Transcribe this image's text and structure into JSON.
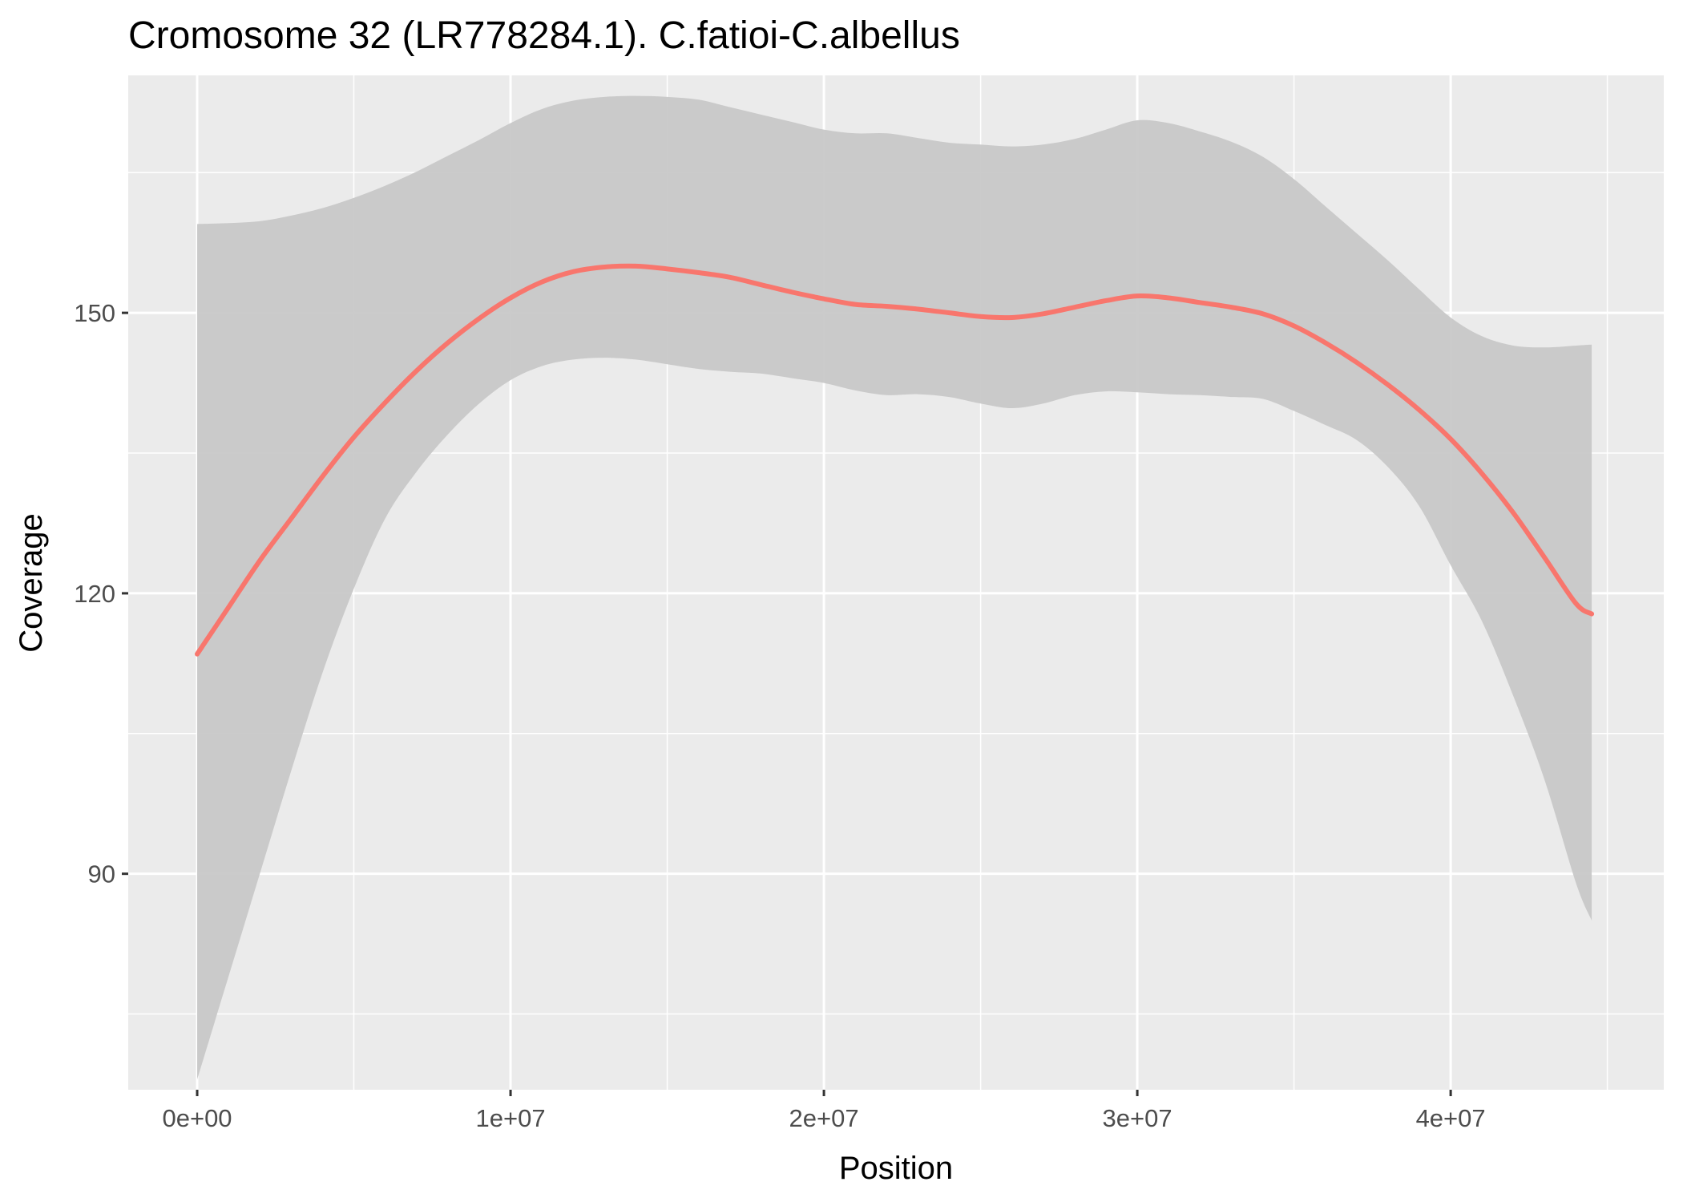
{
  "chart_data": {
    "type": "line",
    "title": "Cromosome 32 (LR778284.1). C.fatioi-C.albellus",
    "xlabel": "Position",
    "ylabel": "Coverage",
    "xlim": [
      -2200000,
      46800000
    ],
    "ylim": [
      66900,
      175400
    ],
    "x_ticks": [
      0,
      10000000,
      20000000,
      30000000,
      40000000
    ],
    "x_tick_labels": [
      "0e+00",
      "1e+07",
      "2e+07",
      "3e+07",
      "4e+07"
    ],
    "y_ticks": [
      90,
      120,
      150
    ],
    "y_tick_labels": [
      "90",
      "120",
      "150"
    ],
    "grid": true,
    "legend": "none",
    "colors": {
      "line": "#F8766D",
      "ribbon": "#C8C8C8",
      "panel": "#EBEBEB",
      "grid": "#FFFFFF"
    },
    "series": [
      {
        "x": [
          0,
          1000000,
          2000000,
          3000000,
          4000000,
          5000000,
          6000000,
          7000000,
          8000000,
          9000000,
          10000000,
          11000000,
          12000000,
          13000000,
          14000000,
          15000000,
          16000000,
          17000000,
          18000000,
          19000000,
          20000000,
          21000000,
          22000000,
          23000000,
          24000000,
          25000000,
          26000000,
          27000000,
          28000000,
          29000000,
          30000000,
          31000000,
          32000000,
          33000000,
          34000000,
          35000000,
          36000000,
          37000000,
          38000000,
          39000000,
          40000000,
          41000000,
          42000000,
          43000000,
          44000000,
          44500000
        ],
        "y": [
          113.5,
          118.5,
          123.5,
          128.0,
          132.5,
          136.7,
          140.4,
          143.8,
          146.8,
          149.4,
          151.6,
          153.3,
          154.4,
          154.9,
          155.0,
          154.7,
          154.3,
          153.8,
          153.0,
          152.2,
          151.5,
          150.9,
          150.7,
          150.4,
          150.0,
          149.6,
          149.5,
          149.9,
          150.6,
          151.3,
          151.8,
          151.6,
          151.1,
          150.6,
          149.9,
          148.6,
          146.8,
          144.7,
          142.3,
          139.6,
          136.5,
          132.8,
          128.6,
          123.8,
          118.9,
          117.8
        ],
        "lower": [
          68.0,
          79.0,
          90.0,
          101.0,
          111.5,
          120.5,
          128.0,
          133.0,
          137.0,
          140.3,
          142.8,
          144.3,
          145.0,
          145.2,
          145.0,
          144.5,
          144.0,
          143.7,
          143.5,
          143.0,
          142.5,
          141.7,
          141.2,
          141.3,
          141.0,
          140.3,
          139.8,
          140.3,
          141.2,
          141.6,
          141.5,
          141.3,
          141.2,
          141.0,
          140.8,
          139.5,
          138.0,
          136.4,
          133.5,
          129.3,
          123.0,
          117.0,
          109.0,
          100.0,
          89.0,
          85.0
        ],
        "upper": [
          159.5,
          159.6,
          159.8,
          160.4,
          161.2,
          162.3,
          163.6,
          165.1,
          166.8,
          168.5,
          170.3,
          171.8,
          172.7,
          173.1,
          173.2,
          173.1,
          172.8,
          172.0,
          171.2,
          170.4,
          169.6,
          169.2,
          169.2,
          168.7,
          168.2,
          168.0,
          167.8,
          168.0,
          168.6,
          169.6,
          170.6,
          170.3,
          169.4,
          168.3,
          166.7,
          164.3,
          161.4,
          158.5,
          155.6,
          152.5,
          149.5,
          147.5,
          146.5,
          146.3,
          146.5,
          146.6
        ]
      }
    ]
  }
}
